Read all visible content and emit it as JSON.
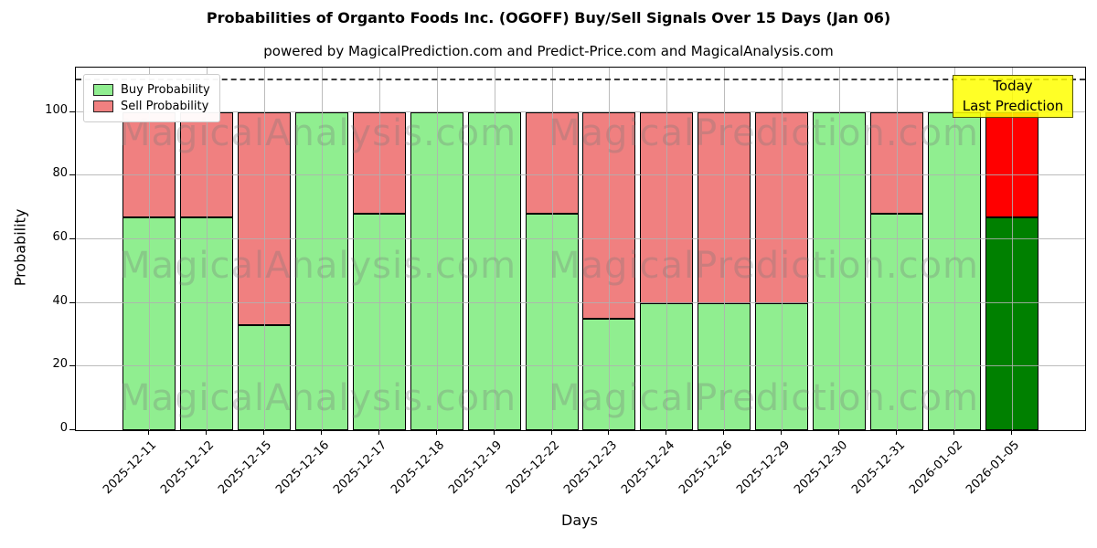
{
  "title": "Probabilities of Organto Foods Inc. (OGOFF) Buy/Sell Signals Over 15 Days (Jan 06)",
  "subtitle": "powered by MagicalPrediction.com and Predict-Price.com and MagicalAnalysis.com",
  "axis": {
    "xlabel": "Days",
    "ylabel": "Probability"
  },
  "annotation": {
    "line1": "Today",
    "line2": "Last Prediction",
    "bg_color": "#FFFF00"
  },
  "watermarks": {
    "left": "MagicalAnalysis.com",
    "right": "MagicalPrediction.com"
  },
  "chart_data": {
    "type": "bar",
    "stacked": true,
    "title": "Probabilities of Organto Foods Inc. (OGOFF) Buy/Sell Signals Over 15 Days (Jan 06)",
    "xlabel": "Days",
    "ylabel": "Probability",
    "ylim": [
      0,
      114
    ],
    "yticks": [
      0,
      20,
      40,
      60,
      80,
      100
    ],
    "dashed_line_y": 110,
    "grid": true,
    "legend_position": "upper-left",
    "categories": [
      "2025-12-11",
      "2025-12-12",
      "2025-12-15",
      "2025-12-16",
      "2025-12-17",
      "2025-12-18",
      "2025-12-19",
      "2025-12-22",
      "2025-12-23",
      "2025-12-24",
      "2025-12-26",
      "2025-12-29",
      "2025-12-30",
      "2025-12-31",
      "2026-01-02",
      "2026-01-05"
    ],
    "series": [
      {
        "name": "Buy Probability",
        "color": "#90EE90",
        "today_color": "#008000",
        "values": [
          67,
          67,
          33,
          100,
          68,
          100,
          100,
          68,
          35,
          40,
          40,
          40,
          100,
          68,
          100,
          67
        ]
      },
      {
        "name": "Sell Probability",
        "color": "#F08080",
        "today_color": "#FF0000",
        "values": [
          33,
          33,
          67,
          0,
          32,
          0,
          0,
          32,
          65,
          60,
          60,
          60,
          0,
          32,
          0,
          33
        ]
      }
    ],
    "today_index": 15
  }
}
